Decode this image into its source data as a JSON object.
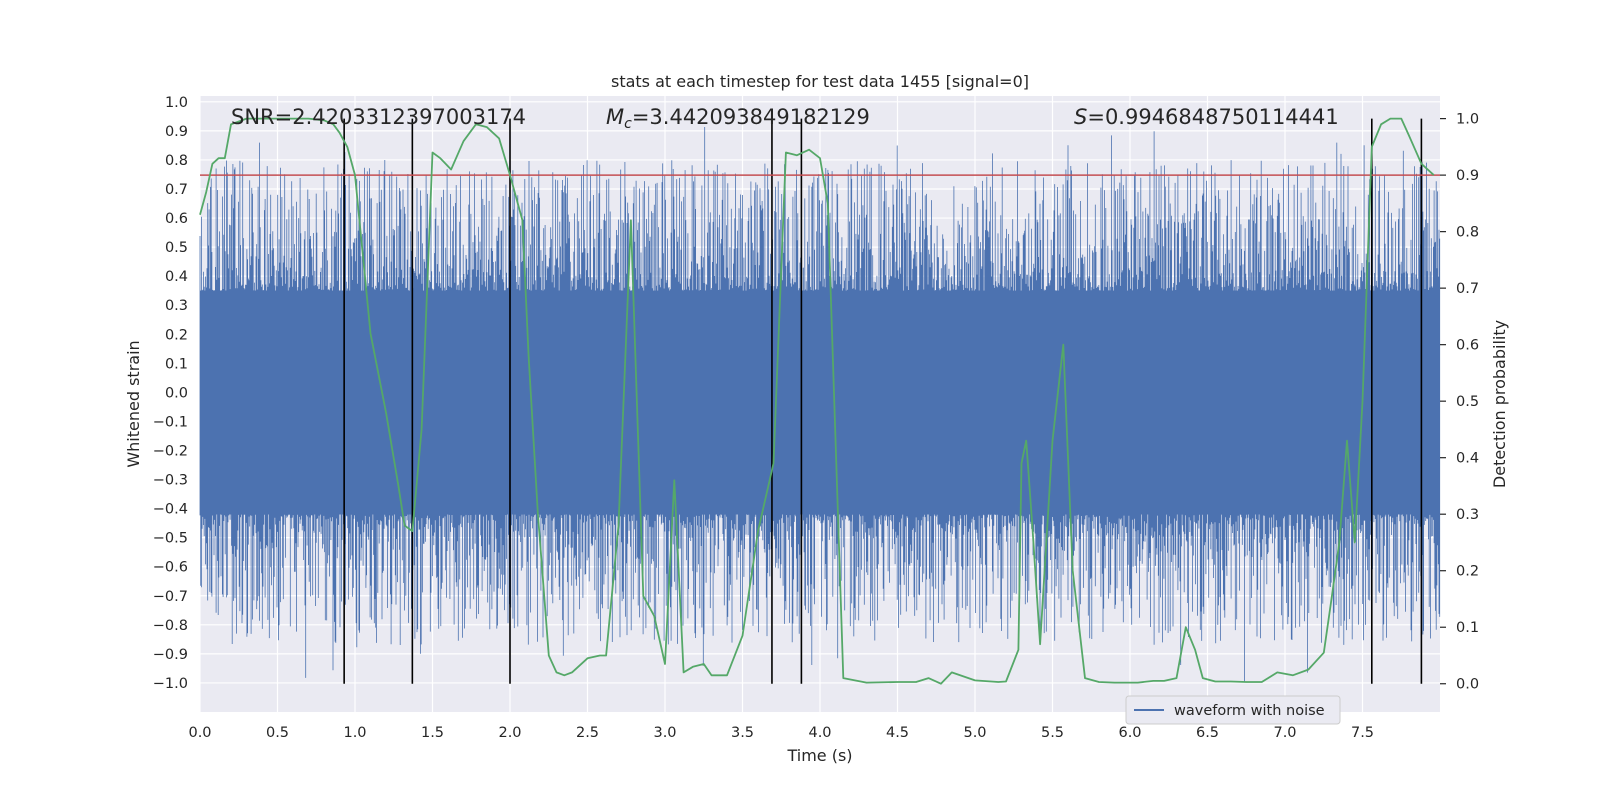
{
  "chart_data": {
    "type": "line",
    "title": "stats at each timestep for test data 1455 [signal=0]",
    "xlabel": "Time (s)",
    "ylabel_left": "Whitened strain",
    "ylabel_right": "Detection probability",
    "xlim": [
      0.0,
      8.0
    ],
    "ylim_left": [
      -1.1,
      1.02
    ],
    "ylim_right": [
      -0.05,
      1.04
    ],
    "x_ticks": [
      0.0,
      0.5,
      1.0,
      1.5,
      2.0,
      2.5,
      3.0,
      3.5,
      4.0,
      4.5,
      5.0,
      5.5,
      6.0,
      6.5,
      7.0,
      7.5
    ],
    "x_tick_labels": [
      "0.0",
      "0.5",
      "1.0",
      "1.5",
      "2.0",
      "2.5",
      "3.0",
      "3.5",
      "4.0",
      "4.5",
      "5.0",
      "5.5",
      "6.0",
      "6.5",
      "7.0",
      "7.5"
    ],
    "y_left_ticks": [
      1.0,
      0.9,
      0.8,
      0.7,
      0.6,
      0.5,
      0.4,
      0.3,
      0.2,
      0.1,
      0.0,
      -0.1,
      -0.2,
      -0.3,
      -0.4,
      -0.5,
      -0.6,
      -0.7,
      -0.8,
      -0.9,
      -1.0
    ],
    "y_left_tick_labels": [
      "1.0",
      "0.9",
      "0.8",
      "0.7",
      "0.6",
      "0.5",
      "0.4",
      "0.3",
      "0.2",
      "0.1",
      "0.0",
      "−0.1",
      "−0.2",
      "−0.3",
      "−0.4",
      "−0.5",
      "−0.6",
      "−0.7",
      "−0.8",
      "−0.9",
      "−1.0"
    ],
    "y_right_ticks": [
      1.0,
      0.9,
      0.8,
      0.7,
      0.6,
      0.5,
      0.4,
      0.3,
      0.2,
      0.1,
      0.0
    ],
    "y_right_tick_labels": [
      "1.0",
      "0.9",
      "0.8",
      "0.7",
      "0.6",
      "0.5",
      "0.4",
      "0.3",
      "0.2",
      "0.1",
      "0.0"
    ],
    "annotations": {
      "snr_label": "SNR=2.4203312397003174",
      "mc_symbol": "M",
      "mc_subscript": "c",
      "mc_value": "=3.442093849182129",
      "s_symbol": "S",
      "s_value": "=0.9946848750114441"
    },
    "threshold": {
      "value": 0.9,
      "axis": "right",
      "color": "#c44e52"
    },
    "vertical_markers": [
      0.93,
      1.37,
      2.0,
      3.69,
      3.88,
      7.56,
      7.88
    ],
    "series": [
      {
        "name": "waveform with noise",
        "axis": "left",
        "color": "#4c72b0",
        "kind": "noise",
        "core_band": [
          -0.42,
          0.35
        ],
        "typical_peak_range": [
          0.3,
          0.92
        ],
        "typical_trough_range": [
          -0.3,
          -1.0
        ]
      },
      {
        "name": "detection probability",
        "axis": "right",
        "color": "#55a868",
        "x": [
          0.0,
          0.04,
          0.08,
          0.12,
          0.16,
          0.2,
          0.3,
          0.4,
          0.5,
          0.6,
          0.7,
          0.8,
          0.86,
          0.9,
          0.95,
          1.0,
          1.1,
          1.2,
          1.28,
          1.32,
          1.37,
          1.43,
          1.5,
          1.55,
          1.62,
          1.7,
          1.78,
          1.85,
          1.93,
          2.0,
          2.08,
          2.12,
          2.18,
          2.25,
          2.3,
          2.35,
          2.4,
          2.5,
          2.58,
          2.62,
          2.7,
          2.78,
          2.86,
          2.93,
          3.0,
          3.06,
          3.12,
          3.18,
          3.25,
          3.3,
          3.4,
          3.5,
          3.6,
          3.7,
          3.78,
          3.85,
          3.93,
          4.0,
          4.05,
          4.15,
          4.3,
          4.5,
          4.62,
          4.7,
          4.78,
          4.85,
          5.0,
          5.15,
          5.2,
          5.28,
          5.3,
          5.33,
          5.37,
          5.42,
          5.5,
          5.57,
          5.63,
          5.71,
          5.8,
          5.9,
          6.05,
          6.15,
          6.22,
          6.3,
          6.36,
          6.42,
          6.47,
          6.55,
          6.65,
          6.75,
          6.85,
          6.95,
          7.05,
          7.15,
          7.25,
          7.3,
          7.35,
          7.4,
          7.45,
          7.5,
          7.56,
          7.62,
          7.68,
          7.75,
          7.8,
          7.88,
          7.96
        ],
        "y": [
          0.83,
          0.87,
          0.92,
          0.93,
          0.93,
          0.99,
          1.0,
          1.0,
          1.0,
          1.0,
          1.0,
          0.997,
          0.99,
          0.975,
          0.95,
          0.9,
          0.62,
          0.48,
          0.35,
          0.28,
          0.27,
          0.45,
          0.94,
          0.93,
          0.91,
          0.96,
          0.99,
          0.985,
          0.965,
          0.9,
          0.82,
          0.58,
          0.3,
          0.05,
          0.02,
          0.015,
          0.02,
          0.045,
          0.05,
          0.05,
          0.28,
          0.82,
          0.155,
          0.12,
          0.035,
          0.36,
          0.02,
          0.03,
          0.035,
          0.015,
          0.015,
          0.085,
          0.27,
          0.39,
          0.94,
          0.935,
          0.945,
          0.93,
          0.85,
          0.01,
          0.002,
          0.003,
          0.003,
          0.01,
          0.0,
          0.02,
          0.006,
          0.003,
          0.004,
          0.06,
          0.39,
          0.43,
          0.28,
          0.07,
          0.43,
          0.6,
          0.2,
          0.01,
          0.003,
          0.002,
          0.002,
          0.005,
          0.005,
          0.01,
          0.1,
          0.06,
          0.01,
          0.004,
          0.004,
          0.003,
          0.003,
          0.02,
          0.015,
          0.025,
          0.055,
          0.15,
          0.25,
          0.43,
          0.25,
          0.5,
          0.95,
          0.99,
          1.0,
          1.0,
          0.97,
          0.92,
          0.9
        ]
      }
    ],
    "legend": {
      "position": "bottom-right",
      "entries": [
        "waveform with noise"
      ]
    },
    "grid": true
  }
}
